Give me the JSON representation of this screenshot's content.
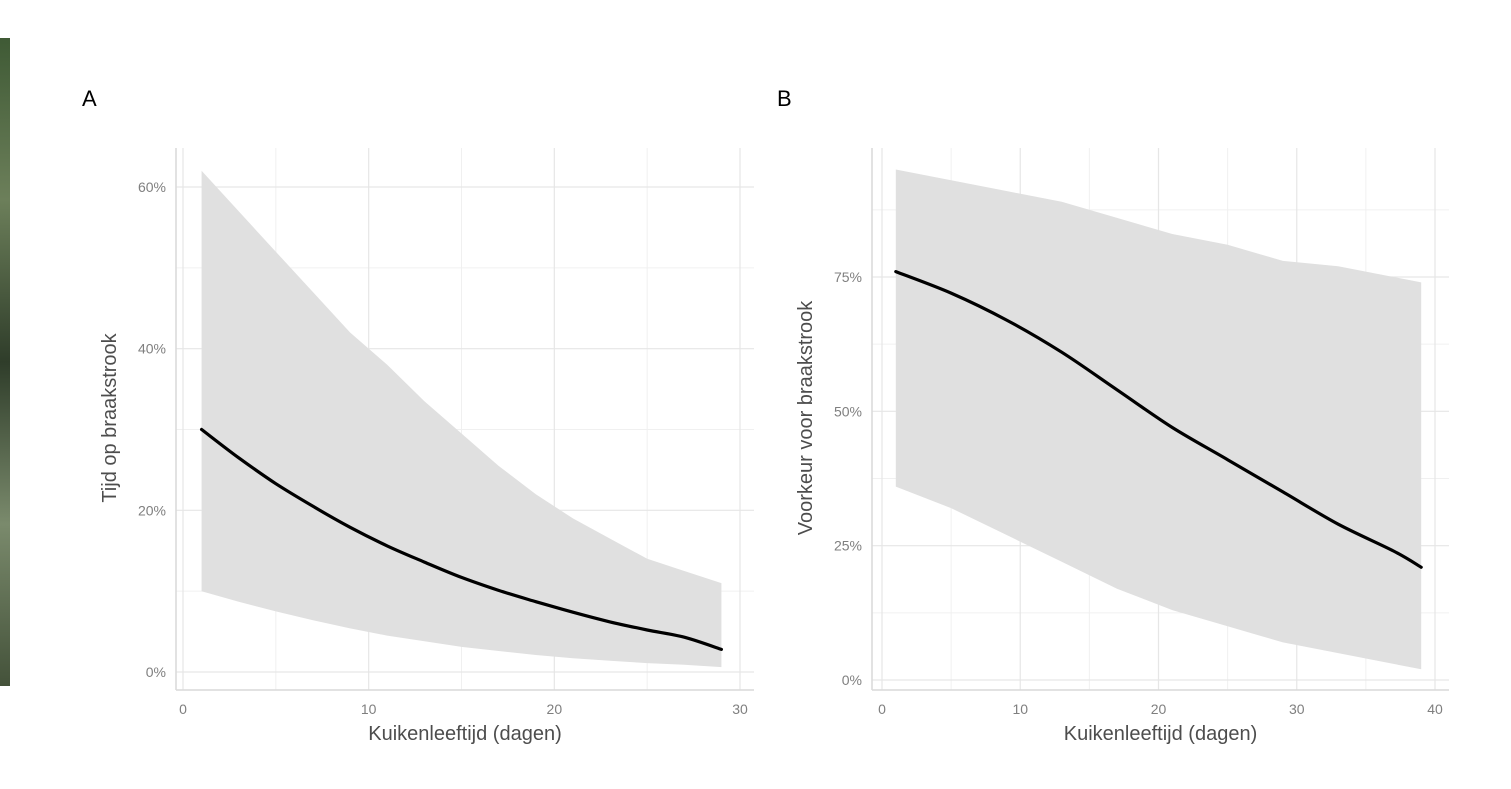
{
  "chart_data": [
    {
      "type": "line",
      "panel_label": "A",
      "xlabel": "Kuikenleeftijd (dagen)",
      "ylabel": "Tijd op braakstrook",
      "xlim": [
        0,
        30
      ],
      "ylim": [
        0,
        0.65
      ],
      "x_ticks": [
        0,
        10,
        20,
        30
      ],
      "x_tick_labels": [
        "0",
        "10",
        "20",
        "30"
      ],
      "y_ticks": [
        0,
        0.2,
        0.4,
        0.6
      ],
      "y_tick_labels": [
        "0%",
        "20%",
        "40%",
        "60%"
      ],
      "grid": true,
      "series": [
        {
          "x": [
            1,
            3,
            5,
            7,
            9,
            11,
            13,
            15,
            17,
            19,
            21,
            23,
            25,
            27,
            29
          ],
          "y": [
            0.3,
            0.265,
            0.233,
            0.205,
            0.179,
            0.156,
            0.136,
            0.117,
            0.101,
            0.087,
            0.074,
            0.062,
            0.052,
            0.043,
            0.028
          ],
          "lower": [
            0.1,
            0.087,
            0.075,
            0.064,
            0.054,
            0.045,
            0.038,
            0.031,
            0.026,
            0.021,
            0.017,
            0.014,
            0.011,
            0.009,
            0.006
          ],
          "upper": [
            0.62,
            0.57,
            0.52,
            0.47,
            0.42,
            0.38,
            0.335,
            0.295,
            0.255,
            0.22,
            0.19,
            0.165,
            0.14,
            0.125,
            0.11
          ]
        }
      ],
      "colors": {
        "line": "#000000",
        "band": "#e0e0e0"
      }
    },
    {
      "type": "line",
      "panel_label": "B",
      "xlabel": "Kuikenleeftijd (dagen)",
      "ylabel": "Voorkeur voor braakstrook",
      "xlim": [
        0,
        40
      ],
      "ylim": [
        0,
        1.0
      ],
      "x_ticks": [
        0,
        10,
        20,
        30,
        40
      ],
      "x_tick_labels": [
        "0",
        "10",
        "20",
        "30",
        "40"
      ],
      "y_ticks": [
        0,
        0.25,
        0.5,
        0.75
      ],
      "y_tick_labels": [
        "0%",
        "25%",
        "50%",
        "75%"
      ],
      "grid": true,
      "series": [
        {
          "x": [
            1,
            5,
            9,
            13,
            17,
            21,
            25,
            29,
            33,
            37,
            39
          ],
          "y": [
            0.76,
            0.72,
            0.67,
            0.61,
            0.54,
            0.47,
            0.41,
            0.35,
            0.29,
            0.24,
            0.21
          ],
          "lower": [
            0.36,
            0.32,
            0.27,
            0.22,
            0.17,
            0.13,
            0.1,
            0.07,
            0.05,
            0.03,
            0.02
          ],
          "upper": [
            0.95,
            0.93,
            0.91,
            0.89,
            0.86,
            0.83,
            0.81,
            0.78,
            0.77,
            0.75,
            0.74
          ]
        }
      ],
      "colors": {
        "line": "#000000",
        "band": "#e0e0e0"
      }
    }
  ]
}
